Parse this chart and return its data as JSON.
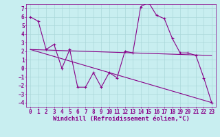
{
  "xlabel": "Windchill (Refroidissement éolien,°C)",
  "background_color": "#c8eef0",
  "grid_color": "#aad8da",
  "line_color": "#880088",
  "xlim": [
    -0.5,
    23.5
  ],
  "ylim": [
    -4.5,
    7.5
  ],
  "xticks": [
    0,
    1,
    2,
    3,
    4,
    5,
    6,
    7,
    8,
    9,
    10,
    11,
    12,
    13,
    14,
    15,
    16,
    17,
    18,
    19,
    20,
    21,
    22,
    23
  ],
  "yticks": [
    -4,
    -3,
    -2,
    -1,
    0,
    1,
    2,
    3,
    4,
    5,
    6,
    7
  ],
  "line1_x": [
    0,
    1,
    2,
    3,
    4,
    5,
    6,
    7,
    8,
    9,
    10,
    11,
    12,
    13,
    14,
    15,
    16,
    17,
    18,
    19,
    20,
    21,
    22,
    23
  ],
  "line1_y": [
    6.0,
    5.5,
    2.2,
    2.8,
    0.0,
    2.2,
    -2.2,
    -2.2,
    -0.5,
    -2.2,
    -0.5,
    -1.1,
    2.0,
    1.8,
    7.2,
    7.7,
    6.2,
    5.8,
    3.5,
    1.8,
    1.8,
    1.5,
    -1.1,
    -4.0
  ],
  "line2_x": [
    0,
    23
  ],
  "line2_y": [
    2.2,
    1.5
  ],
  "line3_x": [
    0,
    23
  ],
  "line3_y": [
    2.2,
    -4.0
  ],
  "tick_fontsize": 5.5,
  "label_fontsize": 6.5
}
